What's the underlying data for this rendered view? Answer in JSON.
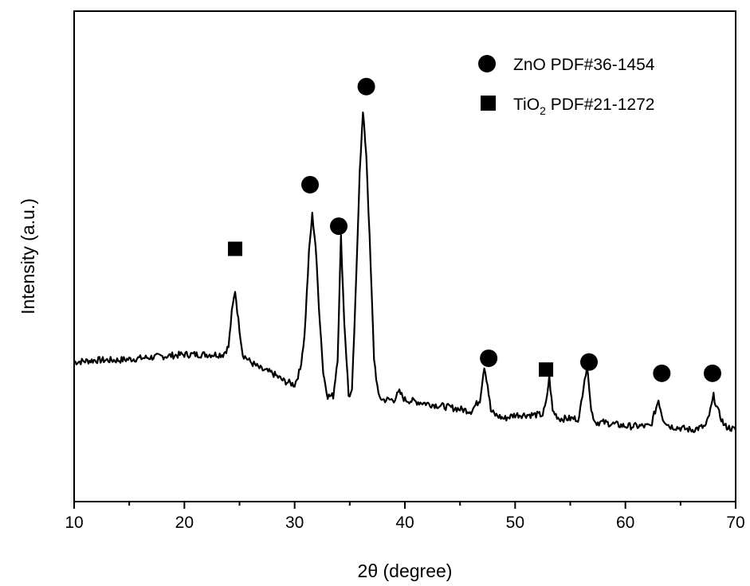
{
  "chart_data": {
    "type": "line",
    "xlabel": "2θ  (degree)",
    "ylabel": "Intensity (a.u.)",
    "xlim": [
      10,
      70
    ],
    "xticks": [
      "10",
      "20",
      "30",
      "40",
      "50",
      "60",
      "70"
    ],
    "yticks_shown": false,
    "grid": false,
    "legend_position": "top-right",
    "legend": [
      {
        "marker": "circle",
        "label_main": "ZnO PDF#36-1454",
        "label_sub": ""
      },
      {
        "marker": "square",
        "label_main": "TiO",
        "label_sub": "2",
        "label_rest": " PDF#21-1272"
      }
    ],
    "series": [
      {
        "color": "#000000",
        "x": [
          10,
          12,
          14,
          16,
          18,
          20,
          22,
          23.5,
          24.0,
          24.3,
          24.6,
          24.9,
          25.3,
          26,
          27,
          28,
          29,
          30,
          30.5,
          30.9,
          31.3,
          31.6,
          31.9,
          32.2,
          32.6,
          33.0,
          33.5,
          33.9,
          34.2,
          34.5,
          34.9,
          35.2,
          35.6,
          35.9,
          36.2,
          36.5,
          36.8,
          37.2,
          37.6,
          38.0,
          39,
          39.5,
          40,
          42,
          44,
          46,
          46.8,
          47.2,
          47.5,
          47.8,
          48.2,
          49,
          50,
          51,
          52.5,
          52.8,
          53.1,
          53.4,
          54,
          55,
          55.8,
          56.3,
          56.6,
          56.9,
          57.3,
          58,
          60,
          62.3,
          62.7,
          63.0,
          63.4,
          64,
          66,
          67.3,
          67.7,
          68.0,
          68.4,
          69,
          70
        ],
        "y": [
          7,
          7.5,
          7.5,
          8,
          8.5,
          9,
          9,
          9,
          11,
          20,
          26,
          18,
          9,
          7,
          5,
          4,
          2,
          1,
          5,
          14,
          36,
          46,
          38,
          22,
          4,
          -2,
          -2,
          8,
          40,
          18,
          -2,
          -1,
          30,
          58,
          73,
          62,
          40,
          8,
          -2,
          -3,
          -3,
          -1,
          -3,
          -4,
          -5,
          -6,
          -3,
          6,
          1,
          -6,
          -7,
          -8,
          -7,
          -7,
          -7,
          -4,
          3,
          -6,
          -8,
          -8,
          -8,
          3,
          5,
          -6,
          -9,
          -9,
          -10,
          -10,
          -6,
          -3,
          -8,
          -10,
          -11,
          -10,
          -6,
          -2,
          -6,
          -10,
          -11
        ]
      }
    ],
    "annotations": [
      {
        "marker": "square",
        "x": 24.6,
        "label_y": 37
      },
      {
        "marker": "circle",
        "x": 31.4,
        "label_y": 54
      },
      {
        "marker": "circle",
        "x": 34.0,
        "label_y": 43
      },
      {
        "marker": "circle",
        "x": 36.5,
        "label_y": 80
      },
      {
        "marker": "circle",
        "x": 47.6,
        "label_y": 8
      },
      {
        "marker": "square",
        "x": 52.8,
        "label_y": 5
      },
      {
        "marker": "circle",
        "x": 56.7,
        "label_y": 7
      },
      {
        "marker": "circle",
        "x": 63.3,
        "label_y": 4
      },
      {
        "marker": "circle",
        "x": 67.9,
        "label_y": 4
      }
    ]
  }
}
